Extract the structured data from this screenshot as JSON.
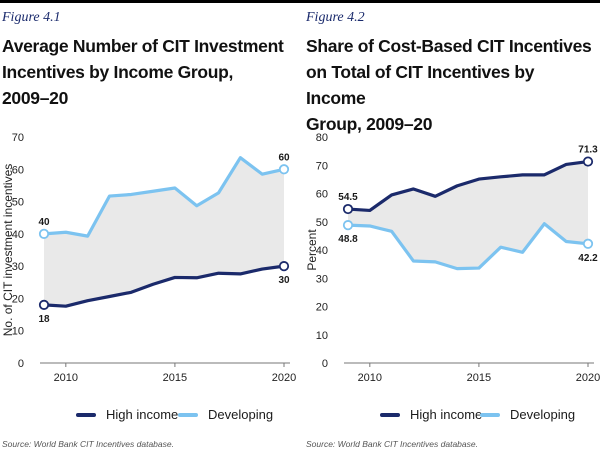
{
  "chart_data": [
    {
      "type": "line",
      "figure_label": "Figure 4.1",
      "title": "Average Number of CIT Investment Incentives by Income Group, 2009–20",
      "title_lines": [
        "Average Number of CIT Investment",
        "Incentives by Income Group,",
        "2009–20"
      ],
      "xlabel": "",
      "ylabel": "No. of CIT investment incentives",
      "xlim": [
        2009,
        2020
      ],
      "ylim": [
        0,
        70
      ],
      "xticks": [
        2010,
        2015,
        2020
      ],
      "yticks": [
        0,
        10,
        20,
        30,
        40,
        50,
        60,
        70
      ],
      "x": [
        2009,
        2010,
        2011,
        2012,
        2013,
        2014,
        2015,
        2016,
        2017,
        2018,
        2019,
        2020
      ],
      "series": [
        {
          "name": "High income",
          "color": "#1b2a6b",
          "values": [
            18,
            17.6,
            19.3,
            20.6,
            21.9,
            24.4,
            26.5,
            26.4,
            27.8,
            27.6,
            29.1,
            30
          ],
          "start_label": "18",
          "end_label": "30"
        },
        {
          "name": "Developing",
          "color": "#7cc3f0",
          "values": [
            40,
            40.5,
            39.3,
            51.7,
            52.2,
            53.2,
            54.2,
            48.7,
            52.7,
            63.6,
            58.5,
            60
          ],
          "start_label": "40",
          "end_label": "60"
        }
      ],
      "fill_between": true,
      "source": "Source: World Bank CIT Incentives database."
    },
    {
      "type": "line",
      "figure_label": "Figure 4.2",
      "title": "Share of Cost-Based CIT Incentives on Total of CIT Incentives by Income Group, 2009–20",
      "title_lines": [
        "Share of Cost-Based CIT Incentives",
        "on Total of CIT Incentives by Income",
        "Group, 2009–20"
      ],
      "xlabel": "",
      "ylabel": "Percent",
      "xlim": [
        2009,
        2020
      ],
      "ylim": [
        0,
        80
      ],
      "xticks": [
        2010,
        2015,
        2020
      ],
      "yticks": [
        0,
        10,
        20,
        30,
        40,
        50,
        60,
        70,
        80
      ],
      "x": [
        2009,
        2010,
        2011,
        2012,
        2013,
        2014,
        2015,
        2016,
        2017,
        2018,
        2019,
        2020
      ],
      "series": [
        {
          "name": "High income",
          "color": "#1b2a6b",
          "values": [
            54.5,
            54.0,
            59.5,
            61.6,
            59.0,
            62.7,
            65.1,
            65.9,
            66.6,
            66.6,
            70.3,
            71.3
          ],
          "start_label": "54.5",
          "end_label": "71.3"
        },
        {
          "name": "Developing",
          "color": "#7cc3f0",
          "values": [
            48.8,
            48.5,
            46.6,
            36.1,
            35.8,
            33.4,
            33.6,
            41.0,
            39.2,
            49.3,
            43.0,
            42.2
          ],
          "start_label": "48.8",
          "end_label": "42.2"
        }
      ],
      "fill_between": true,
      "source": "Source: World Bank CIT Incentives database."
    }
  ]
}
